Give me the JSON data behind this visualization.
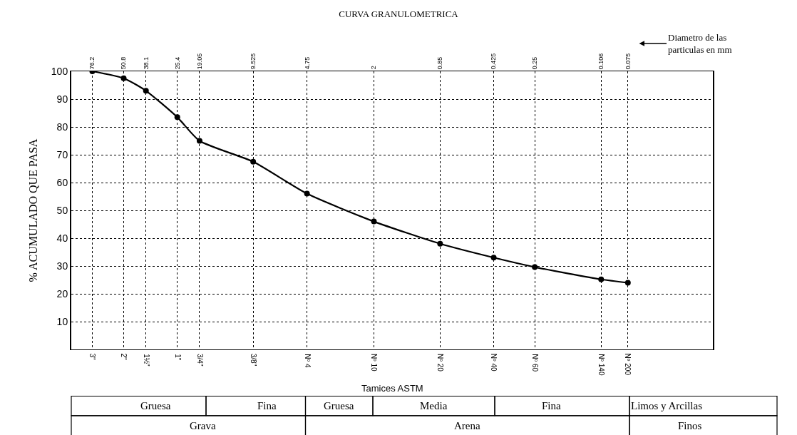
{
  "chart_data": {
    "type": "line",
    "title": "CURVA GRANULOMETRICA",
    "xlabel": "Tamices ASTM",
    "ylabel": "% ACUMULADO QUE PASA",
    "log": "x",
    "x": [
      76.2,
      50.8,
      38.1,
      25.4,
      19.05,
      9.525,
      4.75,
      2,
      0.85,
      0.425,
      0.25,
      0.106,
      0.075
    ],
    "series": [
      {
        "color": "#000000",
        "values": [
          100,
          97.5,
          93,
          83.5,
          75,
          67.5,
          56,
          46,
          38,
          33,
          29.6,
          25.2,
          24
        ]
      }
    ],
    "xlim": [
      100,
      0.025
    ],
    "ylim": [
      0,
      100
    ],
    "yticks": [
      10,
      20,
      30,
      40,
      50,
      60,
      70,
      80,
      90,
      100
    ],
    "xticks": [
      76.2,
      50.8,
      38.1,
      25.4,
      19.05,
      9.525,
      4.75,
      2,
      0.85,
      0.425,
      0.25,
      0.106,
      0.075
    ],
    "grid": true,
    "marker": "circle",
    "line_style": "solid",
    "annotations": [
      "Diametro de las particulas en mm",
      "3\"",
      "2\"",
      "1½\"",
      "1\"",
      "3/4\"",
      "3/8\"",
      "Nº 4",
      "Nº 10",
      "Nº 20",
      "Nº 40",
      "Nº 60",
      "Nº 140",
      "Nº 200",
      "Gruesa",
      "Fina",
      "Gruesa",
      "Media",
      "Fina",
      "Limos y Arcillas",
      "Grava",
      "Arena",
      "Finos"
    ]
  }
}
